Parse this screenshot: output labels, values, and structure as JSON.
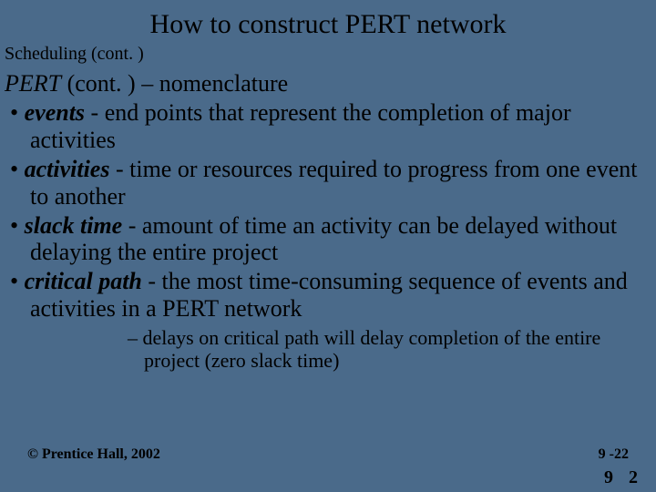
{
  "colors": {
    "background": "#4a6a8a",
    "text": "#000000"
  },
  "typography": {
    "family": "Times New Roman",
    "title_size_pt": 30,
    "subtitle_size_pt": 20,
    "heading_size_pt": 26,
    "bullet_size_pt": 26,
    "subbullet_size_pt": 22,
    "footer_size_pt": 16,
    "corner_size_pt": 20
  },
  "title": "How to construct PERT network",
  "subtitle": "Scheduling (cont. )",
  "heading": {
    "italic_part": "PERT",
    "rest": " (cont. ) – nomenclature"
  },
  "bullets": [
    {
      "term": "events",
      "def": " - end points that represent the completion of major activities"
    },
    {
      "term": "activities",
      "def": " - time or resources required to progress from one event to another"
    },
    {
      "term": "slack time",
      "def": " - amount of time an activity can be delayed without delaying the entire project"
    },
    {
      "term": "critical path",
      "def": " - the most time-consuming sequence of events and activities in a PERT network"
    }
  ],
  "sub_bullets": [
    "delays on critical path will delay completion of the entire project (zero slack time)"
  ],
  "footer": {
    "left": "© Prentice Hall, 2002",
    "right": "9 -22"
  },
  "corner": "9 2"
}
